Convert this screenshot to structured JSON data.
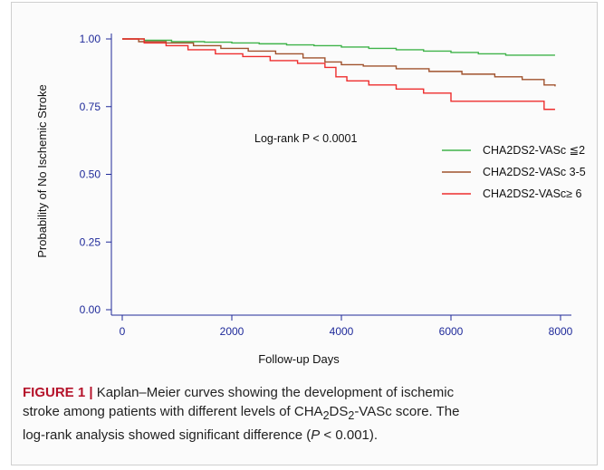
{
  "chart_data": {
    "type": "line",
    "step": true,
    "xlabel": "Follow-up Days",
    "ylabel": "Probability of No Ischemic Stroke",
    "xlim": [
      0,
      8000
    ],
    "ylim": [
      0,
      1.0
    ],
    "xticks": [
      0,
      2000,
      4000,
      6000,
      8000
    ],
    "yticks": [
      0.0,
      0.25,
      0.5,
      0.75,
      1.0
    ],
    "xtick_labels": [
      "0",
      "2000",
      "4000",
      "6000",
      "8000"
    ],
    "ytick_labels": [
      "0.00",
      "0.25",
      "0.50",
      "0.75",
      "1.00"
    ],
    "grid": false,
    "legend_position": "right",
    "annotation": "Log-rank P < 0.0001",
    "series": [
      {
        "name": "CHA2DS2-VASc ≦2",
        "color": "#3fb34a",
        "x": [
          0,
          400,
          900,
          1500,
          2000,
          2500,
          3000,
          3500,
          4000,
          4500,
          5000,
          5500,
          6000,
          6500,
          7000,
          7500,
          7900
        ],
        "y": [
          1.0,
          0.995,
          0.99,
          0.988,
          0.985,
          0.982,
          0.978,
          0.975,
          0.97,
          0.965,
          0.96,
          0.955,
          0.95,
          0.945,
          0.94,
          0.94,
          0.94
        ]
      },
      {
        "name": "CHA2DS2-VASc 3-5",
        "color": "#a0522d",
        "x": [
          0,
          300,
          800,
          1300,
          1800,
          2300,
          2800,
          3300,
          3700,
          4000,
          4400,
          5000,
          5600,
          6200,
          6800,
          7300,
          7700,
          7900
        ],
        "y": [
          1.0,
          0.99,
          0.985,
          0.975,
          0.965,
          0.955,
          0.945,
          0.93,
          0.915,
          0.905,
          0.9,
          0.89,
          0.88,
          0.87,
          0.86,
          0.85,
          0.83,
          0.825
        ]
      },
      {
        "name": "CHA2DS2-VASc≥ 6",
        "color": "#ee2d2d",
        "x": [
          0,
          400,
          800,
          1200,
          1700,
          2200,
          2700,
          3200,
          3700,
          3900,
          4100,
          4500,
          5000,
          5500,
          6000,
          7000,
          7700,
          7900
        ],
        "y": [
          1.0,
          0.985,
          0.975,
          0.96,
          0.945,
          0.935,
          0.92,
          0.91,
          0.895,
          0.86,
          0.845,
          0.83,
          0.815,
          0.8,
          0.77,
          0.77,
          0.74,
          0.74
        ]
      }
    ]
  },
  "caption": {
    "label": "FIGURE 1 |",
    "line1": " Kaplan–Meier curves showing the development of ischemic",
    "line2_pre": "stroke among patients with different levels of CHA",
    "sub1": "2",
    "line2_mid": "DS",
    "sub2": "2",
    "line2_post": "-VASc score. The",
    "line3_pre": "log-rank analysis showed significant difference (",
    "line3_p": "P",
    "line3_post": " < 0.001)."
  }
}
